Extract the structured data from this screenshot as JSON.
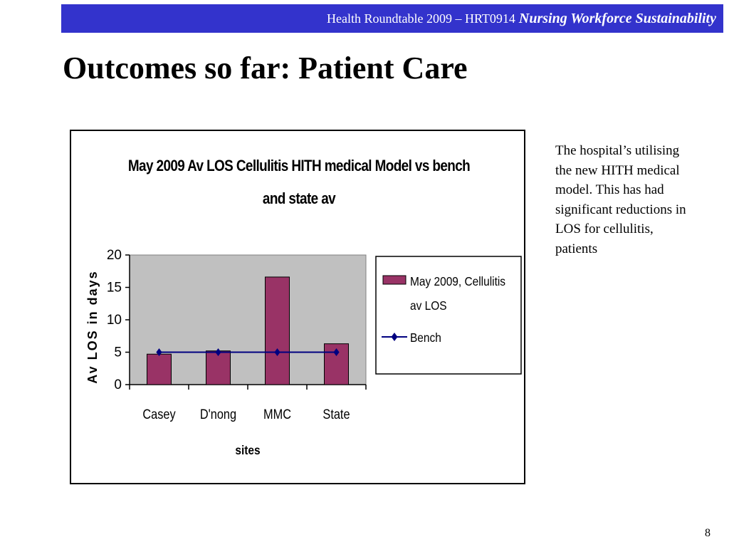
{
  "header": {
    "prefix": "Health Roundtable  2009 – HRT0914",
    "tagline": "Nursing Workforce Sustainability",
    "background_color": "#3333cc"
  },
  "slide": {
    "title": "Outcomes so far: Patient Care",
    "page_number": "8"
  },
  "side_note": "The hospital’s utilising the new HITH medical model. This has had significant reductions in LOS for cellulitis, patients",
  "chart_data": {
    "type": "bar",
    "title": "May 2009 Av LOS Cellulitis HITH medical Model vs bench and state av",
    "xlabel": "sites",
    "ylabel": "Av LOS in days",
    "categories": [
      "Casey",
      "D'nong",
      "MMC",
      "State"
    ],
    "ylim": [
      0,
      20
    ],
    "yticks": [
      0,
      5,
      10,
      15,
      20
    ],
    "grid": false,
    "legend_position": "right",
    "plot_background": "#c0c0c0",
    "series": [
      {
        "name": "May 2009, Cellulitis av LOS",
        "type": "bar",
        "values": [
          4.7,
          5.2,
          16.6,
          6.3
        ],
        "color": "#993366"
      },
      {
        "name": "Bench",
        "type": "line",
        "marker": "diamond",
        "values": [
          5,
          5,
          5,
          5
        ],
        "color": "#000080"
      }
    ]
  }
}
